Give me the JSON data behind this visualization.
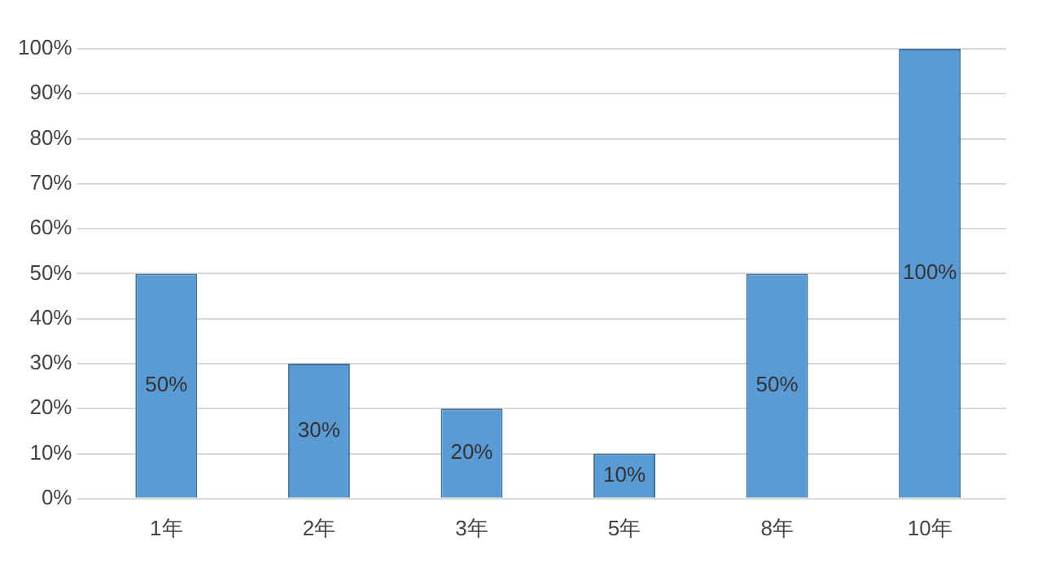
{
  "chart_data": {
    "type": "bar",
    "categories": [
      "1年",
      "2年",
      "3年",
      "5年",
      "8年",
      "10年"
    ],
    "values": [
      50,
      30,
      20,
      10,
      50,
      100
    ],
    "value_labels": [
      "50%",
      "30%",
      "20%",
      "10%",
      "50%",
      "100%"
    ],
    "color": "#5b9bd5",
    "ylim": [
      0,
      100
    ],
    "yticks": [
      {
        "value": 0,
        "label": "0%"
      },
      {
        "value": 10,
        "label": "10%"
      },
      {
        "value": 20,
        "label": "20%"
      },
      {
        "value": 30,
        "label": "30%"
      },
      {
        "value": 40,
        "label": "40%"
      },
      {
        "value": 50,
        "label": "50%"
      },
      {
        "value": 60,
        "label": "60%"
      },
      {
        "value": 70,
        "label": "70%"
      },
      {
        "value": 80,
        "label": "80%"
      },
      {
        "value": 90,
        "label": "90%"
      },
      {
        "value": 100,
        "label": "100%"
      }
    ],
    "grid": "y",
    "legend": false
  }
}
